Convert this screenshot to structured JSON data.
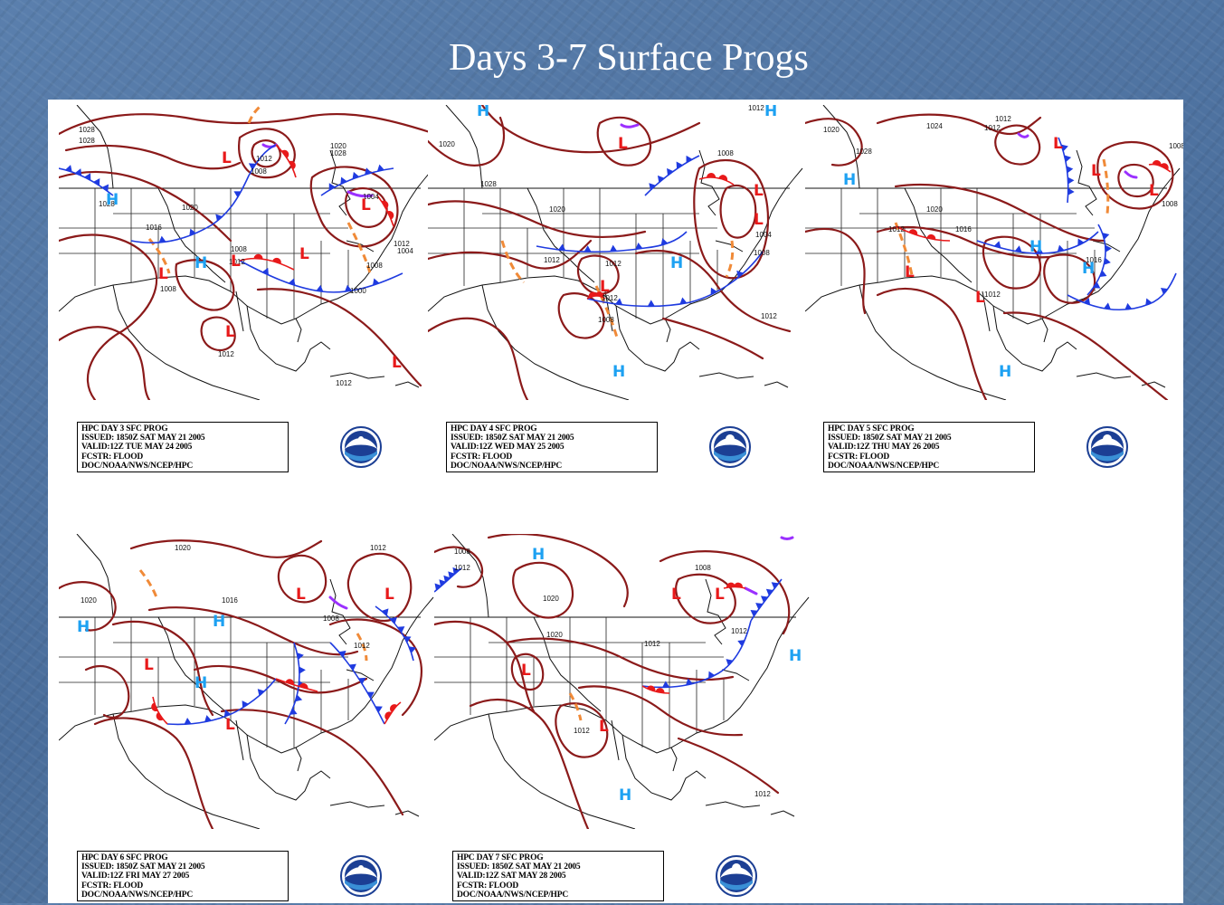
{
  "slide": {
    "title": "Days 3-7 Surface Progs"
  },
  "colors": {
    "isobar": "#8b1a1a",
    "high_center": "#1da1f2",
    "low_center": "#e8191a",
    "cold_front": "#1f3be0",
    "warm_front": "#e8191a",
    "occluded_front": "#9b30ff",
    "trough": "#f08a38",
    "background": "#4f74a2"
  },
  "panels": [
    {
      "day": 3,
      "map": {
        "highs": [
          "H",
          "H"
        ],
        "lows": [
          "L",
          "L",
          "L",
          "L",
          "L",
          "L",
          "L"
        ],
        "isobar_labels": [
          "1028",
          "1028",
          "1020",
          "1028",
          "1016",
          "1008",
          "1012",
          "1008",
          "1012",
          "1012",
          "1004",
          "1008",
          "1004",
          "1000",
          "1012",
          "1020",
          "1028",
          "1008",
          "1012"
        ]
      },
      "stamp": [
        "HPC DAY 3 SFC PROG",
        "ISSUED: 1850Z SAT MAY 21 2005",
        "VALID:12Z TUE MAY 24 2005",
        "FCSTR: FLOOD",
        "DOC/NOAA/NWS/NCEP/HPC"
      ],
      "emblem_icon": "noaa-logo-icon"
    },
    {
      "day": 4,
      "map": {
        "highs": [
          "H",
          "H",
          "H",
          "H"
        ],
        "lows": [
          "L",
          "L",
          "L",
          "L"
        ],
        "isobar_labels": [
          "1020",
          "1028",
          "1012",
          "1012",
          "1012",
          "1008",
          "1004",
          "1008",
          "1020",
          "1012",
          "1008",
          "1012"
        ]
      },
      "stamp": [
        "HPC DAY 4 SFC PROG",
        "ISSUED: 1850Z SAT MAY 21 2005",
        "VALID:12Z WED MAY 25 2005",
        "FCSTR: FLOOD",
        "DOC/NOAA/NWS/NCEP/HPC"
      ],
      "emblem_icon": "nws-logo-icon"
    },
    {
      "day": 5,
      "map": {
        "highs": [
          "H",
          "H",
          "H",
          "H"
        ],
        "lows": [
          "L",
          "L",
          "L",
          "L",
          "L"
        ],
        "isobar_labels": [
          "1020",
          "1028",
          "1024",
          "1012",
          "1012",
          "1012",
          "1020",
          "1016",
          "1016",
          "1012",
          "1008",
          "1008"
        ]
      },
      "stamp": [
        "HPC DAY 5 SFC PROG",
        "ISSUED: 1850Z SAT MAY 21 2005",
        "VALID:12Z THU MAY 26 2005",
        "FCSTR: FLOOD",
        "DOC/NOAA/NWS/NCEP/HPC"
      ],
      "emblem_icon": "nws-logo-icon"
    },
    {
      "day": 6,
      "map": {
        "highs": [
          "H",
          "H",
          "H"
        ],
        "lows": [
          "L",
          "L",
          "L",
          "L"
        ],
        "isobar_labels": [
          "1020",
          "1020",
          "1016",
          "1008",
          "1012",
          "1012"
        ]
      },
      "stamp": [
        "HPC DAY 6 SFC PROG",
        "ISSUED: 1850Z SAT MAY 21 2005",
        "VALID:12Z FRI MAY 27 2005",
        "FCSTR: FLOOD",
        "DOC/NOAA/NWS/NCEP/HPC"
      ],
      "emblem_icon": "noaa-logo-icon"
    },
    {
      "day": 7,
      "map": {
        "highs": [
          "H",
          "H",
          "H",
          "H"
        ],
        "lows": [
          "L",
          "L",
          "L",
          "L"
        ],
        "isobar_labels": [
          "1008",
          "1012",
          "1020",
          "1020",
          "1012",
          "1008",
          "1012",
          "1012",
          "1012"
        ]
      },
      "stamp": [
        "HPC DAY 7 SFC PROG",
        "ISSUED: 1850Z SAT MAY 21 2005",
        "VALID:12Z SAT MAY 28 2005",
        "FCSTR: FLOOD",
        "DOC/NOAA/NWS/NCEP/HPC"
      ],
      "emblem_icon": "nws-logo-icon"
    }
  ]
}
